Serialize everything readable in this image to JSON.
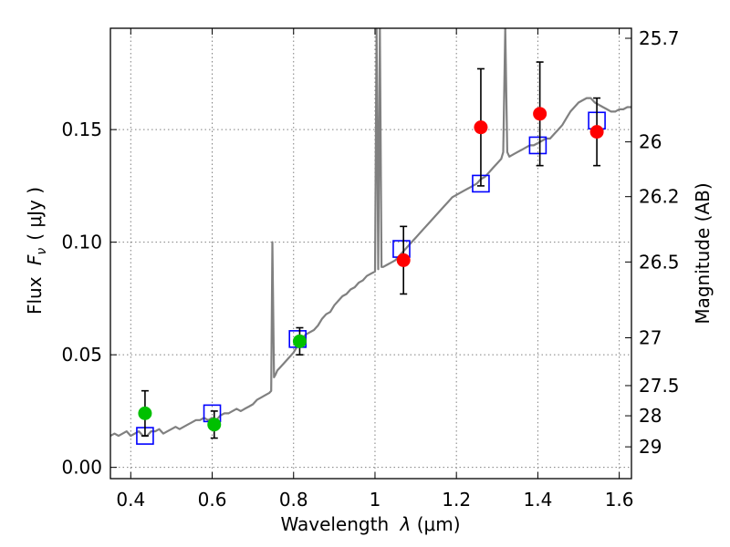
{
  "chart_data": {
    "type": "scatter",
    "xlabel_text": "Wavelength",
    "xlabel_math": "λ",
    "xlabel_unit": "(μm)",
    "ylabel_text": "Flux",
    "ylabel_math": "F",
    "ylabel_sub": "ν",
    "ylabel_unit": "( μJy )",
    "y2label": "Magnitude (AB)",
    "xlim": [
      0.35,
      1.63
    ],
    "ylim": [
      -0.005,
      0.195
    ],
    "xticks": [
      0.4,
      0.6,
      0.8,
      1.0,
      1.2,
      1.4,
      1.6
    ],
    "xtick_labels": [
      "0.4",
      "0.6",
      "0.8",
      "1",
      "1.2",
      "1.4",
      "1.6"
    ],
    "yticks": [
      0.0,
      0.05,
      0.1,
      0.15
    ],
    "ytick_labels": [
      "0.00",
      "0.05",
      "0.10",
      "0.15"
    ],
    "grid": true,
    "y2ticks": [
      {
        "label": "25.7",
        "mag": 25.7
      },
      {
        "label": "26",
        "mag": 26.0
      },
      {
        "label": "26.2",
        "mag": 26.2
      },
      {
        "label": "26.5",
        "mag": 26.5
      },
      {
        "label": "27",
        "mag": 27.0
      },
      {
        "label": "27.5",
        "mag": 27.5
      },
      {
        "label": "28",
        "mag": 28.0
      },
      {
        "label": "29",
        "mag": 29.0
      }
    ],
    "colors": {
      "spectrum": "#808080",
      "model_box": "#0000ff",
      "green": "#00c000",
      "red": "#ff0000",
      "errorbar": "#000000",
      "grid": "#808080"
    },
    "spectrum": [
      [
        0.35,
        0.014
      ],
      [
        0.36,
        0.015
      ],
      [
        0.37,
        0.014
      ],
      [
        0.38,
        0.015
      ],
      [
        0.39,
        0.016
      ],
      [
        0.4,
        0.014
      ],
      [
        0.41,
        0.015
      ],
      [
        0.42,
        0.016
      ],
      [
        0.43,
        0.014
      ],
      [
        0.44,
        0.014
      ],
      [
        0.45,
        0.016
      ],
      [
        0.46,
        0.016
      ],
      [
        0.47,
        0.017
      ],
      [
        0.48,
        0.015
      ],
      [
        0.49,
        0.016
      ],
      [
        0.5,
        0.017
      ],
      [
        0.51,
        0.018
      ],
      [
        0.52,
        0.017
      ],
      [
        0.53,
        0.018
      ],
      [
        0.54,
        0.019
      ],
      [
        0.55,
        0.02
      ],
      [
        0.56,
        0.021
      ],
      [
        0.57,
        0.021
      ],
      [
        0.58,
        0.022
      ],
      [
        0.59,
        0.021
      ],
      [
        0.6,
        0.022
      ],
      [
        0.61,
        0.021
      ],
      [
        0.62,
        0.023
      ],
      [
        0.63,
        0.024
      ],
      [
        0.64,
        0.024
      ],
      [
        0.65,
        0.025
      ],
      [
        0.66,
        0.026
      ],
      [
        0.67,
        0.025
      ],
      [
        0.68,
        0.026
      ],
      [
        0.69,
        0.027
      ],
      [
        0.7,
        0.028
      ],
      [
        0.71,
        0.03
      ],
      [
        0.72,
        0.031
      ],
      [
        0.73,
        0.032
      ],
      [
        0.74,
        0.033
      ],
      [
        0.745,
        0.034
      ],
      [
        0.748,
        0.1
      ],
      [
        0.752,
        0.04
      ],
      [
        0.755,
        0.041
      ],
      [
        0.76,
        0.043
      ],
      [
        0.77,
        0.045
      ],
      [
        0.78,
        0.047
      ],
      [
        0.79,
        0.049
      ],
      [
        0.8,
        0.051
      ],
      [
        0.81,
        0.054
      ],
      [
        0.82,
        0.057
      ],
      [
        0.83,
        0.059
      ],
      [
        0.84,
        0.06
      ],
      [
        0.85,
        0.061
      ],
      [
        0.86,
        0.063
      ],
      [
        0.87,
        0.066
      ],
      [
        0.88,
        0.068
      ],
      [
        0.89,
        0.069
      ],
      [
        0.9,
        0.072
      ],
      [
        0.91,
        0.074
      ],
      [
        0.92,
        0.076
      ],
      [
        0.93,
        0.077
      ],
      [
        0.94,
        0.079
      ],
      [
        0.95,
        0.08
      ],
      [
        0.96,
        0.082
      ],
      [
        0.97,
        0.083
      ],
      [
        0.98,
        0.085
      ],
      [
        0.99,
        0.086
      ],
      [
        1.0,
        0.087
      ],
      [
        1.004,
        0.195
      ],
      [
        1.008,
        0.088
      ],
      [
        1.012,
        0.195
      ],
      [
        1.016,
        0.089
      ],
      [
        1.02,
        0.089
      ],
      [
        1.03,
        0.09
      ],
      [
        1.04,
        0.091
      ],
      [
        1.05,
        0.092
      ],
      [
        1.06,
        0.094
      ],
      [
        1.07,
        0.096
      ],
      [
        1.08,
        0.098
      ],
      [
        1.09,
        0.1
      ],
      [
        1.1,
        0.102
      ],
      [
        1.11,
        0.104
      ],
      [
        1.12,
        0.106
      ],
      [
        1.13,
        0.108
      ],
      [
        1.14,
        0.11
      ],
      [
        1.15,
        0.112
      ],
      [
        1.16,
        0.114
      ],
      [
        1.17,
        0.116
      ],
      [
        1.18,
        0.118
      ],
      [
        1.19,
        0.12
      ],
      [
        1.2,
        0.121
      ],
      [
        1.21,
        0.122
      ],
      [
        1.22,
        0.123
      ],
      [
        1.23,
        0.124
      ],
      [
        1.24,
        0.125
      ],
      [
        1.25,
        0.126
      ],
      [
        1.26,
        0.128
      ],
      [
        1.27,
        0.129
      ],
      [
        1.28,
        0.131
      ],
      [
        1.29,
        0.133
      ],
      [
        1.3,
        0.135
      ],
      [
        1.31,
        0.137
      ],
      [
        1.315,
        0.14
      ],
      [
        1.32,
        0.195
      ],
      [
        1.325,
        0.14
      ],
      [
        1.33,
        0.138
      ],
      [
        1.34,
        0.139
      ],
      [
        1.35,
        0.14
      ],
      [
        1.36,
        0.141
      ],
      [
        1.37,
        0.142
      ],
      [
        1.38,
        0.143
      ],
      [
        1.39,
        0.143
      ],
      [
        1.4,
        0.144
      ],
      [
        1.41,
        0.145
      ],
      [
        1.42,
        0.146
      ],
      [
        1.43,
        0.146
      ],
      [
        1.44,
        0.148
      ],
      [
        1.45,
        0.15
      ],
      [
        1.46,
        0.152
      ],
      [
        1.47,
        0.155
      ],
      [
        1.48,
        0.158
      ],
      [
        1.49,
        0.16
      ],
      [
        1.5,
        0.162
      ],
      [
        1.51,
        0.163
      ],
      [
        1.52,
        0.164
      ],
      [
        1.53,
        0.164
      ],
      [
        1.54,
        0.162
      ],
      [
        1.55,
        0.161
      ],
      [
        1.56,
        0.16
      ],
      [
        1.57,
        0.159
      ],
      [
        1.58,
        0.158
      ],
      [
        1.59,
        0.158
      ],
      [
        1.6,
        0.159
      ],
      [
        1.61,
        0.159
      ],
      [
        1.62,
        0.16
      ],
      [
        1.63,
        0.16
      ]
    ],
    "model_boxes": [
      {
        "x": 0.435,
        "y": 0.014
      },
      {
        "x": 0.6,
        "y": 0.024
      },
      {
        "x": 0.81,
        "y": 0.057
      },
      {
        "x": 1.065,
        "y": 0.097
      },
      {
        "x": 1.26,
        "y": 0.126
      },
      {
        "x": 1.4,
        "y": 0.143
      },
      {
        "x": 1.545,
        "y": 0.154
      }
    ],
    "green_points": [
      {
        "x": 0.435,
        "y": 0.024,
        "err": 0.01
      },
      {
        "x": 0.605,
        "y": 0.019,
        "err": 0.006
      },
      {
        "x": 0.815,
        "y": 0.056,
        "err": 0.006
      }
    ],
    "red_points": [
      {
        "x": 1.07,
        "y": 0.092,
        "err": 0.015
      },
      {
        "x": 1.26,
        "y": 0.151,
        "err": 0.026
      },
      {
        "x": 1.405,
        "y": 0.157,
        "err": 0.023
      },
      {
        "x": 1.545,
        "y": 0.149,
        "err": 0.015
      }
    ]
  }
}
